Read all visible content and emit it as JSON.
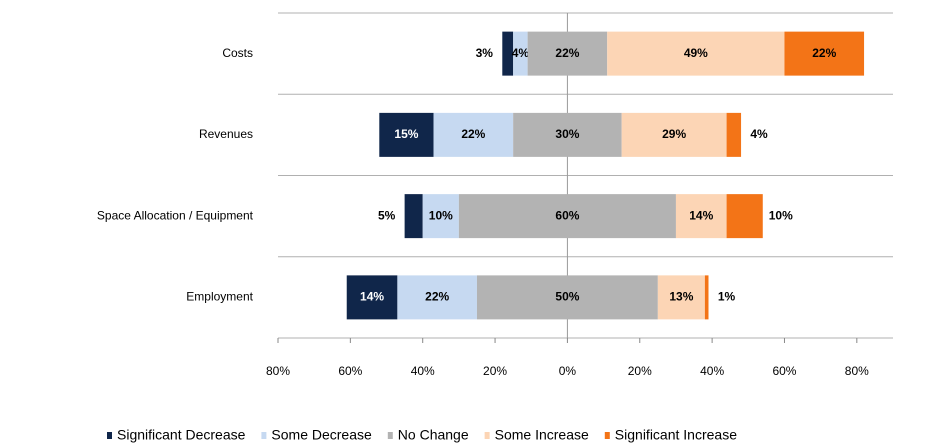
{
  "chart_data": {
    "type": "diverging_bar",
    "categories": [
      "Costs",
      "Revenues",
      "Space Allocation / Equipment",
      "Employment"
    ],
    "series": [
      {
        "name": "Significant Decrease",
        "color": "#10264a",
        "values": [
          3,
          15,
          5,
          14
        ],
        "value_labels": [
          "3%",
          "15%",
          "5%",
          "14%"
        ]
      },
      {
        "name": "Some Decrease",
        "color": "#c6d9f1",
        "values": [
          4,
          22,
          10,
          22
        ],
        "value_labels": [
          "4%",
          "22%",
          "10%",
          "22%"
        ]
      },
      {
        "name": "No Change",
        "color": "#b3b3b3",
        "values": [
          22,
          30,
          60,
          50
        ],
        "value_labels": [
          "22%",
          "30%",
          "60%",
          "50%"
        ]
      },
      {
        "name": "Some Increase",
        "color": "#fcd5b5",
        "values": [
          49,
          29,
          14,
          13
        ],
        "value_labels": [
          "49%",
          "29%",
          "14%",
          "13%"
        ]
      },
      {
        "name": "Significant Increase",
        "color": "#f37417",
        "values": [
          22,
          4,
          10,
          1
        ],
        "value_labels": [
          "22%",
          "4%",
          "10%",
          "1%"
        ]
      }
    ],
    "xlim": [
      -80,
      90
    ],
    "xticks": [
      {
        "value": -80,
        "label": "80%"
      },
      {
        "value": -60,
        "label": "60%"
      },
      {
        "value": -40,
        "label": "40%"
      },
      {
        "value": -20,
        "label": "20%"
      },
      {
        "value": 0,
        "label": "0%"
      },
      {
        "value": 20,
        "label": "20%"
      },
      {
        "value": 40,
        "label": "40%"
      },
      {
        "value": 60,
        "label": "60%"
      },
      {
        "value": 80,
        "label": "80%"
      }
    ],
    "legend": "bottom"
  }
}
